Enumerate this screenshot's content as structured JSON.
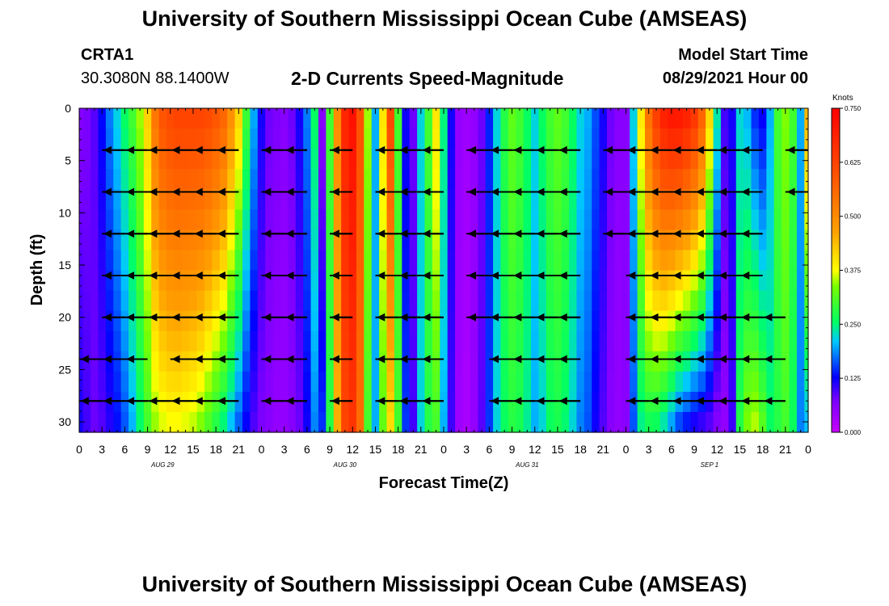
{
  "header": {
    "title": "University of Southern Mississippi Ocean Cube (AMSEAS)",
    "station": "CRTA1",
    "coords": "30.3080N  88.1400W",
    "plot_title": "2-D Currents Speed-Magnitude",
    "model_start_label": "Model Start Time",
    "model_start_value": "08/29/2021 Hour 00"
  },
  "footer": {
    "title": "University of Southern Mississippi Ocean Cube (AMSEAS)"
  },
  "chart_data": {
    "type": "heatmap",
    "title": "2-D Currents Speed-Magnitude",
    "xlabel": "Forecast Time(Z)",
    "ylabel": "Depth (ft)",
    "xlim": [
      0,
      96
    ],
    "ylim": [
      31,
      0
    ],
    "x_ticks": [
      0,
      3,
      6,
      9,
      12,
      15,
      18,
      21,
      24,
      27,
      30,
      33,
      36,
      39,
      42,
      45,
      48,
      51,
      54,
      57,
      60,
      63,
      66,
      69,
      72,
      75,
      78,
      81,
      84,
      87,
      90,
      93,
      96
    ],
    "x_tick_labels": [
      "0",
      "3",
      "6",
      "9",
      "12",
      "15",
      "18",
      "21",
      "0",
      "3",
      "6",
      "9",
      "12",
      "15",
      "18",
      "21",
      "0",
      "3",
      "6",
      "9",
      "12",
      "15",
      "18",
      "21",
      "0",
      "3",
      "6",
      "9",
      "12",
      "15",
      "18",
      "21",
      "0"
    ],
    "y_ticks": [
      0,
      5,
      10,
      15,
      20,
      25,
      30
    ],
    "y_tick_labels": [
      "0",
      "5",
      "10",
      "15",
      "20",
      "25",
      "30"
    ],
    "day_labels": [
      {
        "text": "AUG 29",
        "hour": 11
      },
      {
        "text": "AUG 30",
        "hour": 35
      },
      {
        "text": "AUG 31",
        "hour": 59
      },
      {
        "text": "SEP 1",
        "hour": 83
      }
    ],
    "colorbar": {
      "label": "Knots",
      "min": 0.0,
      "max": 0.75,
      "tick_values": [
        0.0,
        0.125,
        0.25,
        0.375,
        0.5,
        0.625,
        0.75
      ],
      "tick_labels": [
        "0.000",
        "0.125",
        "0.250",
        "0.375",
        "0.500",
        "0.625",
        "0.750"
      ]
    },
    "speed_profile": {
      "hours": [
        0,
        1,
        2,
        3,
        4,
        5,
        6,
        7,
        8,
        9,
        10,
        11,
        12,
        13,
        14,
        15,
        16,
        17,
        18,
        19,
        20,
        21,
        22,
        23,
        24,
        25,
        26,
        27,
        28,
        29,
        30,
        31,
        32,
        33,
        34,
        35,
        36,
        37,
        38,
        39,
        40,
        41,
        42,
        43,
        44,
        45,
        46,
        47,
        48,
        49,
        50,
        51,
        52,
        53,
        54,
        55,
        56,
        57,
        58,
        59,
        60,
        61,
        62,
        63,
        64,
        65,
        66,
        67,
        68,
        69,
        70,
        71,
        72,
        73,
        74,
        75,
        76,
        77,
        78,
        79,
        80,
        81,
        82,
        83,
        84,
        85,
        86,
        87,
        88,
        89,
        90,
        91,
        92,
        93,
        94,
        95,
        96
      ],
      "speed_top": [
        0.06,
        0.07,
        0.09,
        0.13,
        0.18,
        0.22,
        0.26,
        0.3,
        0.35,
        0.42,
        0.54,
        0.6,
        0.62,
        0.63,
        0.63,
        0.63,
        0.63,
        0.62,
        0.6,
        0.57,
        0.5,
        0.42,
        0.3,
        0.2,
        0.12,
        0.08,
        0.07,
        0.06,
        0.08,
        0.12,
        0.18,
        0.26,
        0.06,
        0.3,
        0.5,
        0.68,
        0.72,
        0.6,
        0.35,
        0.2,
        0.4,
        0.62,
        0.3,
        0.12,
        0.08,
        0.22,
        0.3,
        0.4,
        0.25,
        0.12,
        0.05,
        0.04,
        0.05,
        0.08,
        0.14,
        0.22,
        0.28,
        0.32,
        0.3,
        0.26,
        0.22,
        0.26,
        0.3,
        0.32,
        0.3,
        0.26,
        0.22,
        0.2,
        0.16,
        0.12,
        0.08,
        0.06,
        0.06,
        0.22,
        0.4,
        0.55,
        0.64,
        0.7,
        0.72,
        0.72,
        0.7,
        0.66,
        0.58,
        0.42,
        0.24,
        0.1,
        0.12,
        0.22,
        0.2,
        0.14,
        0.12,
        0.2,
        0.3,
        0.34,
        0.3,
        0.2,
        0.45
      ],
      "speed_bottom": [
        0.12,
        0.1,
        0.08,
        0.09,
        0.11,
        0.13,
        0.16,
        0.2,
        0.25,
        0.3,
        0.34,
        0.36,
        0.37,
        0.37,
        0.36,
        0.35,
        0.33,
        0.3,
        0.27,
        0.24,
        0.2,
        0.16,
        0.12,
        0.09,
        0.07,
        0.06,
        0.05,
        0.05,
        0.06,
        0.08,
        0.12,
        0.18,
        0.15,
        0.28,
        0.45,
        0.62,
        0.65,
        0.55,
        0.3,
        0.2,
        0.32,
        0.4,
        0.3,
        0.15,
        0.1,
        0.22,
        0.28,
        0.3,
        0.2,
        0.1,
        0.04,
        0.03,
        0.05,
        0.09,
        0.15,
        0.22,
        0.26,
        0.28,
        0.27,
        0.24,
        0.2,
        0.22,
        0.26,
        0.27,
        0.25,
        0.22,
        0.18,
        0.16,
        0.12,
        0.09,
        0.06,
        0.05,
        0.06,
        0.16,
        0.24,
        0.26,
        0.25,
        0.22,
        0.18,
        0.14,
        0.12,
        0.1,
        0.09,
        0.08,
        0.06,
        0.05,
        0.1,
        0.28,
        0.34,
        0.36,
        0.32,
        0.26,
        0.28,
        0.3,
        0.26,
        0.18,
        0.2
      ]
    },
    "vector_depths": [
      4,
      8,
      12,
      16,
      20,
      24,
      28
    ],
    "vector_segments": [
      {
        "depth": 4,
        "start": 3,
        "end": 21
      },
      {
        "depth": 4,
        "start": 24,
        "end": 30
      },
      {
        "depth": 4,
        "start": 33,
        "end": 36
      },
      {
        "depth": 4,
        "start": 39,
        "end": 48
      },
      {
        "depth": 4,
        "start": 51,
        "end": 66
      },
      {
        "depth": 4,
        "start": 69,
        "end": 90
      },
      {
        "depth": 4,
        "start": 93,
        "end": 96
      },
      {
        "depth": 8,
        "start": 3,
        "end": 21
      },
      {
        "depth": 8,
        "start": 24,
        "end": 30
      },
      {
        "depth": 8,
        "start": 33,
        "end": 36
      },
      {
        "depth": 8,
        "start": 39,
        "end": 48
      },
      {
        "depth": 8,
        "start": 51,
        "end": 66
      },
      {
        "depth": 8,
        "start": 69,
        "end": 90
      },
      {
        "depth": 8,
        "start": 93,
        "end": 96
      },
      {
        "depth": 12,
        "start": 3,
        "end": 21
      },
      {
        "depth": 12,
        "start": 24,
        "end": 30
      },
      {
        "depth": 12,
        "start": 33,
        "end": 36
      },
      {
        "depth": 12,
        "start": 39,
        "end": 48
      },
      {
        "depth": 12,
        "start": 51,
        "end": 66
      },
      {
        "depth": 12,
        "start": 69,
        "end": 90
      },
      {
        "depth": 16,
        "start": 3,
        "end": 21
      },
      {
        "depth": 16,
        "start": 24,
        "end": 30
      },
      {
        "depth": 16,
        "start": 33,
        "end": 36
      },
      {
        "depth": 16,
        "start": 39,
        "end": 48
      },
      {
        "depth": 16,
        "start": 51,
        "end": 66
      },
      {
        "depth": 16,
        "start": 72,
        "end": 90
      },
      {
        "depth": 20,
        "start": 3,
        "end": 21
      },
      {
        "depth": 20,
        "start": 24,
        "end": 30
      },
      {
        "depth": 20,
        "start": 33,
        "end": 36
      },
      {
        "depth": 20,
        "start": 39,
        "end": 48
      },
      {
        "depth": 20,
        "start": 51,
        "end": 66
      },
      {
        "depth": 20,
        "start": 72,
        "end": 93
      },
      {
        "depth": 24,
        "start": 0,
        "end": 9
      },
      {
        "depth": 24,
        "start": 12,
        "end": 21
      },
      {
        "depth": 24,
        "start": 24,
        "end": 30
      },
      {
        "depth": 24,
        "start": 33,
        "end": 36
      },
      {
        "depth": 24,
        "start": 39,
        "end": 48
      },
      {
        "depth": 24,
        "start": 54,
        "end": 66
      },
      {
        "depth": 24,
        "start": 72,
        "end": 93
      },
      {
        "depth": 28,
        "start": 0,
        "end": 21
      },
      {
        "depth": 28,
        "start": 24,
        "end": 30
      },
      {
        "depth": 28,
        "start": 33,
        "end": 36
      },
      {
        "depth": 28,
        "start": 39,
        "end": 48
      },
      {
        "depth": 28,
        "start": 54,
        "end": 66
      },
      {
        "depth": 28,
        "start": 72,
        "end": 93
      }
    ],
    "vector_interval_hours": 3,
    "grid": false,
    "legend_position": "right"
  }
}
